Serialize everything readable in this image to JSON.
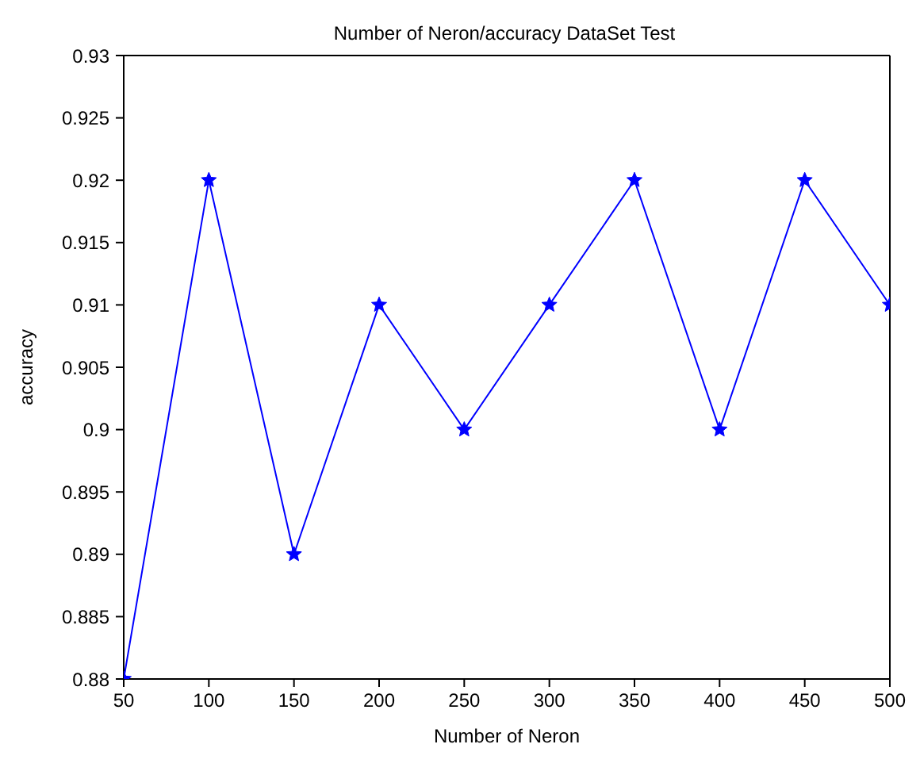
{
  "chart_data": {
    "type": "line",
    "title": "Number of Neron/accuracy DataSet Test",
    "xlabel": "Number of Neron",
    "ylabel": "accuracy",
    "x": [
      50,
      100,
      150,
      200,
      250,
      300,
      350,
      400,
      450,
      500
    ],
    "series": [
      {
        "color": "#0000ff",
        "values": [
          0.88,
          0.92,
          0.89,
          0.91,
          0.9,
          0.91,
          0.92,
          0.9,
          0.92,
          0.91
        ]
      }
    ],
    "xlim": [
      50,
      500
    ],
    "xticks": [
      50,
      100,
      150,
      200,
      250,
      300,
      350,
      400,
      450,
      500
    ],
    "ylim": [
      0.88,
      0.93
    ],
    "yticks": [
      0.88,
      0.885,
      0.89,
      0.895,
      0.9,
      0.905,
      0.91,
      0.915,
      0.92,
      0.925,
      0.93
    ],
    "grid": false,
    "legend": false,
    "marker": "star",
    "line_style": "solid"
  }
}
